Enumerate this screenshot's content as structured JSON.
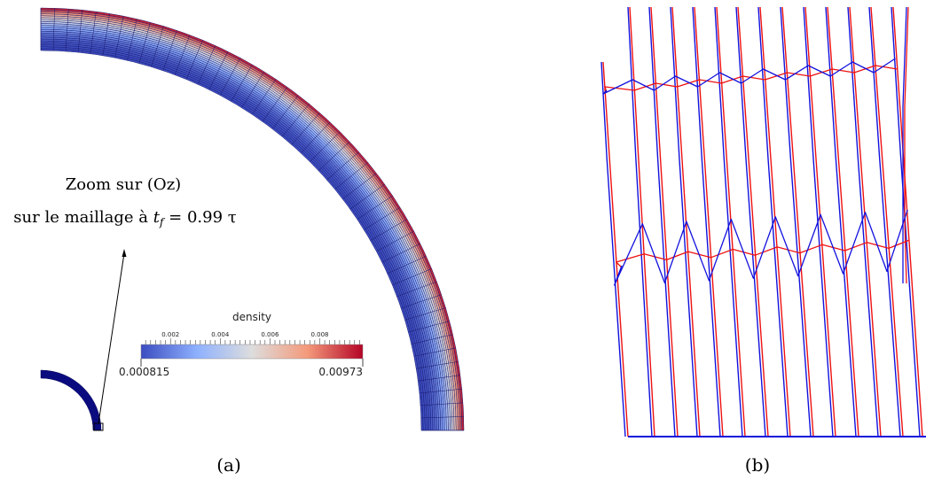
{
  "panel_a": {
    "caption": "(a)",
    "annotation": {
      "line1": "Zoom sur (Oz)",
      "line2_prefix": "sur le maillage à ",
      "t_symbol": "t",
      "t_subscript": "f",
      "line2_suffix": " = 0.99 τ"
    },
    "colorbar": {
      "title": "density",
      "min_label": "0.000815",
      "max_label": "0.00973",
      "tick_labels": [
        "0.002",
        "0.004",
        "0.006",
        "0.008"
      ],
      "min_value": 0.000815,
      "max_value": 0.00973,
      "tick_values": [
        0.002,
        0.004,
        0.006,
        0.008
      ],
      "colors": [
        "#3b4cc0",
        "#8db0fe",
        "#dddddd",
        "#f49a7b",
        "#b40426"
      ]
    },
    "shell": {
      "radial_layers": 22,
      "angular_divisions": 48,
      "mesh_line_color": "#1a1a6e"
    }
  },
  "panel_b": {
    "caption": "(b)",
    "mesh_colors": {
      "series_1": "#ee1111",
      "series_2": "#1111dd"
    }
  }
}
